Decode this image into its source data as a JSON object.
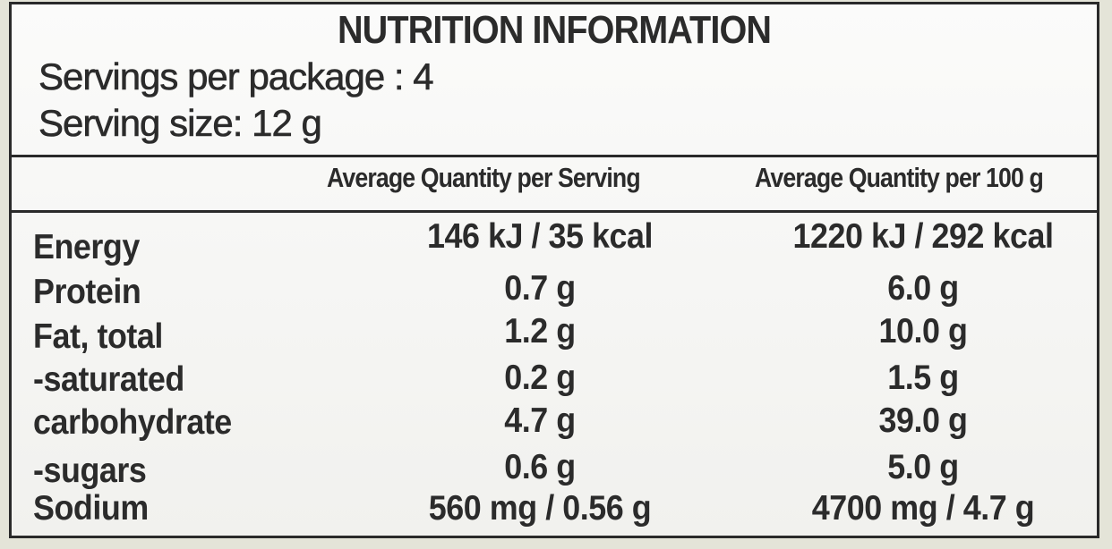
{
  "panel": {
    "title": "NUTRITION INFORMATION",
    "servings_per_package": "Servings per package : 4",
    "serving_size": "Serving size: 12 g"
  },
  "table": {
    "headers": [
      "Average Quantity per Serving",
      "Average Quantity per 100 g"
    ],
    "rows": [
      {
        "nutrient": "Energy",
        "per_serving": "146 kJ / 35 kcal",
        "per_100g": "1220 kJ / 292 kcal"
      },
      {
        "nutrient": "Protein",
        "per_serving": "0.7 g",
        "per_100g": "6.0 g"
      },
      {
        "nutrient": "Fat, total",
        "per_serving": "1.2 g",
        "per_100g": "10.0 g"
      },
      {
        "nutrient": " -saturated",
        "per_serving": "0.2 g",
        "per_100g": "1.5 g"
      },
      {
        "nutrient": "carbohydrate",
        "per_serving": "4.7 g",
        "per_100g": "39.0 g"
      },
      {
        "nutrient": " -sugars",
        "per_serving": "0.6 g",
        "per_100g": "5.0 g"
      },
      {
        "nutrient": "Sodium",
        "per_serving": "560 mg / 0.56 g",
        "per_100g": "4700 mg / 4.7 g"
      }
    ]
  }
}
